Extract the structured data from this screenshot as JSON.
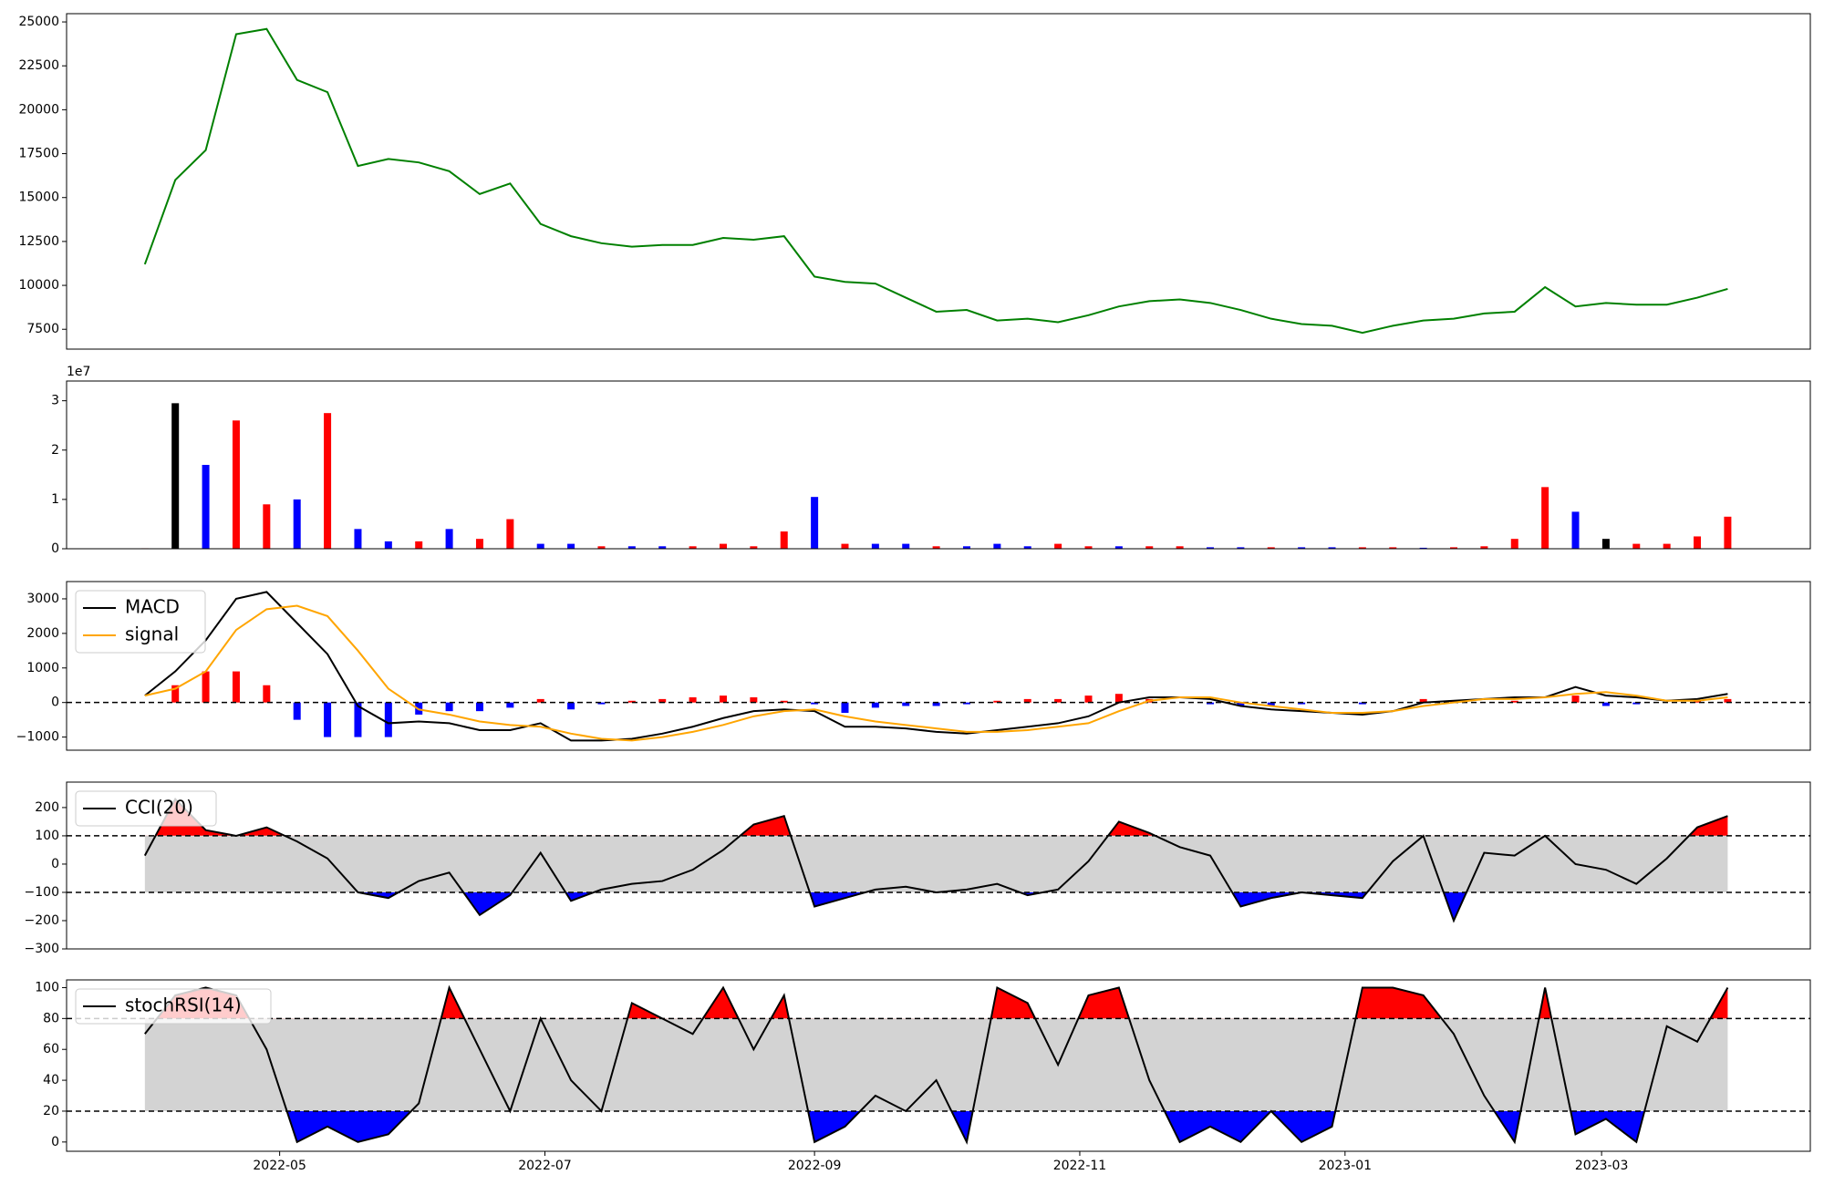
{
  "chart_data": [
    {
      "type": "line",
      "color": "green",
      "x": [
        19082,
        19089,
        19096,
        19103,
        19110,
        19117,
        19124,
        19131,
        19138,
        19145,
        19152,
        19159,
        19166,
        19173,
        19180,
        19187,
        19194,
        19201,
        19208,
        19215,
        19222,
        19229,
        19236,
        19243,
        19250,
        19257,
        19264,
        19271,
        19278,
        19285,
        19292,
        19299,
        19306,
        19313,
        19320,
        19327,
        19334,
        19341,
        19348,
        19355,
        19362,
        19369,
        19376,
        19383,
        19390,
        19397,
        19404,
        19411,
        19418,
        19425,
        19432,
        19439,
        19446
      ],
      "values": [
        11200,
        16000,
        17700,
        24300,
        24600,
        21700,
        21000,
        16800,
        17200,
        17000,
        16500,
        15200,
        15800,
        13500,
        12800,
        12400,
        12200,
        12300,
        12300,
        12700,
        12600,
        12800,
        10500,
        10200,
        10100,
        9300,
        8500,
        8600,
        8000,
        8100,
        7900,
        8300,
        8800,
        9100,
        9200,
        9000,
        8600,
        8100,
        7800,
        7700,
        7300,
        7700,
        8000,
        8100,
        8400,
        8500,
        9900,
        8800,
        9000,
        8900,
        8900,
        9300,
        9800
      ],
      "xlim": [
        19064,
        19465
      ],
      "ylim": [
        6370,
        25470
      ],
      "yticks": [
        7500,
        10000,
        12500,
        15000,
        17500,
        20000,
        22500,
        25000
      ]
    },
    {
      "type": "bar",
      "offset_text": "1e7",
      "x": [
        19082,
        19089,
        19096,
        19103,
        19110,
        19117,
        19124,
        19131,
        19138,
        19145,
        19152,
        19159,
        19166,
        19173,
        19180,
        19187,
        19194,
        19201,
        19208,
        19215,
        19222,
        19229,
        19236,
        19243,
        19250,
        19257,
        19264,
        19271,
        19278,
        19285,
        19292,
        19299,
        19306,
        19313,
        19320,
        19327,
        19334,
        19341,
        19348,
        19355,
        19362,
        19369,
        19376,
        19383,
        19390,
        19397,
        19404,
        19411,
        19418,
        19425,
        19432,
        19439,
        19446
      ],
      "values": [
        0.01,
        2.95,
        1.7,
        2.6,
        0.9,
        1.0,
        2.75,
        0.4,
        0.15,
        0.15,
        0.4,
        0.2,
        0.6,
        0.1,
        0.1,
        0.05,
        0.05,
        0.05,
        0.05,
        0.1,
        0.05,
        0.35,
        1.05,
        0.1,
        0.1,
        0.1,
        0.05,
        0.05,
        0.1,
        0.05,
        0.1,
        0.05,
        0.05,
        0.05,
        0.05,
        0.03,
        0.03,
        0.03,
        0.03,
        0.03,
        0.03,
        0.03,
        0.02,
        0.03,
        0.05,
        0.2,
        1.25,
        0.75,
        0.2,
        0.1,
        0.1,
        0.25,
        0.65
      ],
      "colors": [
        "red",
        "black",
        "blue",
        "red",
        "red",
        "blue",
        "red",
        "blue",
        "blue",
        "red",
        "blue",
        "red",
        "red",
        "blue",
        "blue",
        "red",
        "blue",
        "blue",
        "red",
        "red",
        "red",
        "red",
        "blue",
        "red",
        "blue",
        "blue",
        "red",
        "blue",
        "blue",
        "blue",
        "red",
        "red",
        "blue",
        "red",
        "red",
        "blue",
        "blue",
        "red",
        "blue",
        "blue",
        "red",
        "red",
        "blue",
        "red",
        "red",
        "red",
        "red",
        "blue",
        "black",
        "red",
        "red",
        "red",
        "red"
      ],
      "xlim": [
        19064,
        19465
      ],
      "ylim": [
        0,
        3.4
      ],
      "yticks": [
        0,
        1,
        2,
        3
      ]
    },
    {
      "type": "macd",
      "hline": 0,
      "x": [
        19082,
        19089,
        19096,
        19103,
        19110,
        19117,
        19124,
        19131,
        19138,
        19145,
        19152,
        19159,
        19166,
        19173,
        19180,
        19187,
        19194,
        19201,
        19208,
        19215,
        19222,
        19229,
        19236,
        19243,
        19250,
        19257,
        19264,
        19271,
        19278,
        19285,
        19292,
        19299,
        19306,
        19313,
        19320,
        19327,
        19334,
        19341,
        19348,
        19355,
        19362,
        19369,
        19376,
        19383,
        19390,
        19397,
        19404,
        19411,
        19418,
        19425,
        19432,
        19439,
        19446
      ],
      "histogram": {
        "up_color": "red",
        "down_color": "blue",
        "values": [
          0,
          500,
          900,
          900,
          500,
          -500,
          -1000,
          -1000,
          -1000,
          -350,
          -250,
          -250,
          -150,
          100,
          -200,
          -50,
          50,
          100,
          150,
          200,
          150,
          50,
          -50,
          -300,
          -150,
          -100,
          -100,
          -50,
          50,
          100,
          100,
          200,
          250,
          100,
          0,
          -50,
          -100,
          -100,
          -50,
          0,
          -50,
          0,
          100,
          50,
          0,
          50,
          0,
          200,
          -100,
          -50,
          0,
          50,
          100
        ]
      },
      "series": [
        {
          "name": "MACD",
          "color": "black",
          "values": [
            200,
            900,
            1800,
            3000,
            3200,
            2300,
            1400,
            -100,
            -600,
            -550,
            -600,
            -800,
            -800,
            -600,
            -1100,
            -1100,
            -1050,
            -900,
            -700,
            -450,
            -250,
            -200,
            -250,
            -700,
            -700,
            -750,
            -850,
            -900,
            -800,
            -700,
            -600,
            -400,
            0,
            150,
            150,
            100,
            -100,
            -200,
            -250,
            -300,
            -350,
            -250,
            0,
            50,
            100,
            150,
            150,
            450,
            200,
            150,
            50,
            100,
            250
          ]
        },
        {
          "name": "signal",
          "color": "orange",
          "values": [
            200,
            400,
            900,
            2100,
            2700,
            2800,
            2500,
            1500,
            400,
            -200,
            -350,
            -550,
            -650,
            -700,
            -900,
            -1050,
            -1100,
            -1000,
            -850,
            -650,
            -400,
            -250,
            -200,
            -400,
            -550,
            -650,
            -750,
            -850,
            -850,
            -800,
            -700,
            -600,
            -250,
            50,
            150,
            150,
            0,
            -100,
            -200,
            -300,
            -300,
            -250,
            -100,
            0,
            100,
            100,
            150,
            250,
            300,
            200,
            50,
            50,
            150
          ]
        }
      ],
      "legend": "upper left",
      "xlim": [
        19064,
        19465
      ],
      "ylim": [
        -1380,
        3500
      ],
      "yticks": [
        {
          "value": -1000,
          "label": "−1000"
        },
        0,
        1000,
        2000,
        3000
      ]
    },
    {
      "type": "oscillator",
      "band": [
        -100,
        100
      ],
      "band_color": "lightgray",
      "above_color": "red",
      "below_color": "blue",
      "x": [
        19082,
        19089,
        19096,
        19103,
        19110,
        19117,
        19124,
        19131,
        19138,
        19145,
        19152,
        19159,
        19166,
        19173,
        19180,
        19187,
        19194,
        19201,
        19208,
        19215,
        19222,
        19229,
        19236,
        19243,
        19250,
        19257,
        19264,
        19271,
        19278,
        19285,
        19292,
        19299,
        19306,
        19313,
        19320,
        19327,
        19334,
        19341,
        19348,
        19355,
        19362,
        19369,
        19376,
        19383,
        19390,
        19397,
        19404,
        19411,
        19418,
        19425,
        19432,
        19439,
        19446
      ],
      "series": [
        {
          "name": "CCI(20)",
          "color": "black",
          "values": [
            30,
            230,
            120,
            100,
            130,
            80,
            20,
            -100,
            -120,
            -60,
            -30,
            -180,
            -110,
            40,
            -130,
            -90,
            -70,
            -60,
            -20,
            50,
            140,
            170,
            -150,
            -120,
            -90,
            -80,
            -100,
            -90,
            -70,
            -110,
            -90,
            10,
            150,
            110,
            60,
            30,
            -150,
            -120,
            -100,
            -110,
            -120,
            10,
            100,
            -200,
            40,
            30,
            100,
            0,
            -20,
            -70,
            20,
            130,
            170
          ]
        }
      ],
      "legend": "upper left",
      "xlim": [
        19064,
        19465
      ],
      "ylim": [
        -300,
        290
      ],
      "yticks": [
        {
          "value": -300,
          "label": "−300"
        },
        {
          "value": -200,
          "label": "−200"
        },
        {
          "value": -100,
          "label": "−100"
        },
        0,
        100,
        200
      ]
    },
    {
      "type": "oscillator",
      "band": [
        20,
        80
      ],
      "band_color": "lightgray",
      "above_color": "red",
      "below_color": "blue",
      "x": [
        19082,
        19089,
        19096,
        19103,
        19110,
        19117,
        19124,
        19131,
        19138,
        19145,
        19152,
        19159,
        19166,
        19173,
        19180,
        19187,
        19194,
        19201,
        19208,
        19215,
        19222,
        19229,
        19236,
        19243,
        19250,
        19257,
        19264,
        19271,
        19278,
        19285,
        19292,
        19299,
        19306,
        19313,
        19320,
        19327,
        19334,
        19341,
        19348,
        19355,
        19362,
        19369,
        19376,
        19383,
        19390,
        19397,
        19404,
        19411,
        19418,
        19425,
        19432,
        19439,
        19446
      ],
      "series": [
        {
          "name": "stochRSI(14)",
          "color": "black",
          "values": [
            70,
            95,
            100,
            95,
            60,
            0,
            10,
            0,
            5,
            25,
            100,
            60,
            20,
            80,
            40,
            20,
            90,
            80,
            70,
            100,
            60,
            95,
            0,
            10,
            30,
            20,
            40,
            0,
            100,
            90,
            50,
            95,
            100,
            40,
            0,
            10,
            0,
            20,
            0,
            10,
            100,
            100,
            95,
            70,
            30,
            0,
            100,
            5,
            15,
            0,
            75,
            65,
            100
          ]
        }
      ],
      "legend": "upper left",
      "xlim": [
        19064,
        19465
      ],
      "ylim": [
        -6,
        105
      ],
      "yticks": [
        0,
        20,
        40,
        60,
        80,
        100
      ],
      "xticks": [
        {
          "value": 19113,
          "label": "2022-05"
        },
        {
          "value": 19174,
          "label": "2022-07"
        },
        {
          "value": 19236,
          "label": "2022-09"
        },
        {
          "value": 19297,
          "label": "2022-11"
        },
        {
          "value": 19358,
          "label": "2023-01"
        },
        {
          "value": 19417,
          "label": "2023-03"
        }
      ]
    }
  ]
}
